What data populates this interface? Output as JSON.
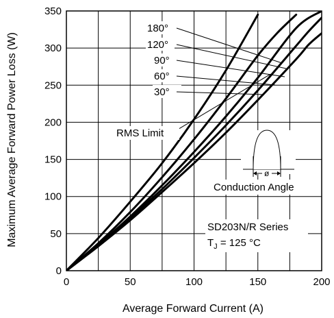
{
  "chart_data": {
    "type": "line",
    "title": "",
    "xlabel": "Average Forward Current (A)",
    "ylabel": "Maximum Average Forward Power Loss (W)",
    "xlim": [
      0,
      200
    ],
    "ylim": [
      0,
      350
    ],
    "x_ticks": [
      "0",
      "50",
      "100",
      "150",
      "200"
    ],
    "y_ticks": [
      "0",
      "50",
      "100",
      "150",
      "200",
      "250",
      "300",
      "350"
    ],
    "grid": true,
    "series": [
      {
        "name": "180°",
        "x": [
          0,
          25,
          50,
          75,
          100,
          125,
          150,
          180,
          190,
          200
        ],
        "y": [
          0,
          33,
          68,
          106,
          145,
          186,
          230,
          285,
          305,
          320
        ]
      },
      {
        "name": "120°",
        "x": [
          0,
          25,
          50,
          75,
          100,
          125,
          150,
          180,
          190,
          200
        ],
        "y": [
          0,
          34,
          71,
          110,
          152,
          196,
          243,
          303,
          323,
          341
        ]
      },
      {
        "name": "90°",
        "x": [
          0,
          25,
          50,
          75,
          100,
          125,
          150,
          180,
          200
        ],
        "y": [
          0,
          35,
          73,
          115,
          160,
          208,
          260,
          327,
          350
        ]
      },
      {
        "name": "60°",
        "x": [
          0,
          25,
          50,
          75,
          100,
          125,
          150,
          165,
          180
        ],
        "y": [
          0,
          37,
          79,
          126,
          177,
          232,
          290,
          320,
          345
        ]
      },
      {
        "name": "30°",
        "x": [
          0,
          25,
          50,
          75,
          100,
          125,
          150
        ],
        "y": [
          0,
          44,
          93,
          145,
          204,
          270,
          345
        ]
      }
    ],
    "rms_limit_line": {
      "x": [
        85,
        160
      ],
      "y": [
        188,
        265
      ]
    },
    "annotations": {
      "rms_limit": "RMS Limit",
      "conduction_angle": "Conduction Angle",
      "phi": "ø",
      "series_name": "SD203N/R Series",
      "tj_prefix": "T",
      "tj_sub": "J",
      "tj_value": " = 125 °C"
    }
  }
}
